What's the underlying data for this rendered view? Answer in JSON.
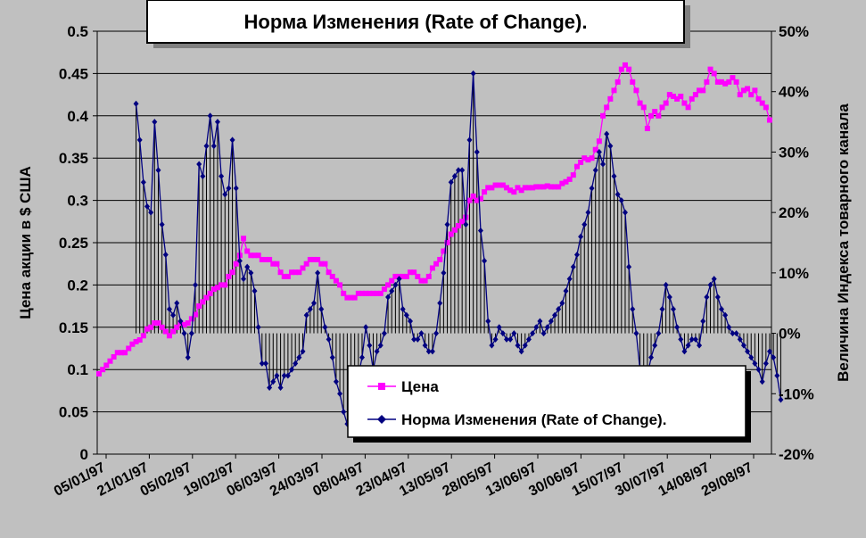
{
  "chart_data": {
    "type": "line",
    "title": "Норма Изменения (Rate of Change).",
    "ylabel": "Цена акции в $ США",
    "y2label": "Величина Индекса товарного канала",
    "ylim": [
      0,
      0.5
    ],
    "y2lim": [
      -20,
      50
    ],
    "yticks": [
      "0",
      "0.05",
      "0.1",
      "0.15",
      "0.2",
      "0.25",
      "0.3",
      "0.35",
      "0.4",
      "0.45",
      "0.5"
    ],
    "y2ticks": [
      "-20%",
      "-10%",
      "0%",
      "10%",
      "20%",
      "30%",
      "40%",
      "50%"
    ],
    "xticks": [
      "05/01/97",
      "21/01/97",
      "05/02/97",
      "19/02/97",
      "06/03/97",
      "24/03/97",
      "08/04/97",
      "23/04/97",
      "13/05/97",
      "28/05/97",
      "13/06/97",
      "30/06/97",
      "15/07/97",
      "30/07/97",
      "14/08/97",
      "29/08/97"
    ],
    "grid": true,
    "legend_position": "bottom-center",
    "colors": {
      "price": "#ff00ff",
      "roc": "#000080",
      "plot_bg": "#c0c0c0",
      "grid": "#000000"
    },
    "series": [
      {
        "name": "Цена",
        "axis": "left",
        "marker": "square",
        "values": [
          0.095,
          0.1,
          0.105,
          0.11,
          0.115,
          0.12,
          0.12,
          0.12,
          0.125,
          0.13,
          0.133,
          0.135,
          0.14,
          0.148,
          0.15,
          0.155,
          0.155,
          0.15,
          0.145,
          0.14,
          0.145,
          0.15,
          0.155,
          0.153,
          0.155,
          0.16,
          0.165,
          0.175,
          0.18,
          0.185,
          0.19,
          0.195,
          0.197,
          0.2,
          0.2,
          0.21,
          0.215,
          0.225,
          0.235,
          0.255,
          0.24,
          0.235,
          0.235,
          0.235,
          0.23,
          0.23,
          0.23,
          0.225,
          0.225,
          0.215,
          0.21,
          0.21,
          0.215,
          0.215,
          0.215,
          0.22,
          0.225,
          0.23,
          0.23,
          0.23,
          0.225,
          0.225,
          0.215,
          0.21,
          0.205,
          0.2,
          0.19,
          0.185,
          0.185,
          0.185,
          0.19,
          0.19,
          0.19,
          0.19,
          0.19,
          0.19,
          0.19,
          0.195,
          0.2,
          0.205,
          0.21,
          0.21,
          0.21,
          0.21,
          0.215,
          0.215,
          0.21,
          0.205,
          0.205,
          0.21,
          0.22,
          0.225,
          0.23,
          0.24,
          0.25,
          0.26,
          0.265,
          0.27,
          0.275,
          0.28,
          0.3,
          0.305,
          0.3,
          0.302,
          0.31,
          0.315,
          0.315,
          0.318,
          0.318,
          0.318,
          0.315,
          0.312,
          0.31,
          0.315,
          0.312,
          0.315,
          0.315,
          0.315,
          0.316,
          0.316,
          0.316,
          0.317,
          0.316,
          0.316,
          0.316,
          0.32,
          0.322,
          0.325,
          0.33,
          0.34,
          0.345,
          0.35,
          0.348,
          0.35,
          0.36,
          0.37,
          0.4,
          0.41,
          0.42,
          0.43,
          0.44,
          0.455,
          0.46,
          0.455,
          0.44,
          0.43,
          0.415,
          0.41,
          0.385,
          0.4,
          0.405,
          0.4,
          0.41,
          0.415,
          0.425,
          0.423,
          0.42,
          0.423,
          0.415,
          0.41,
          0.42,
          0.425,
          0.43,
          0.43,
          0.44,
          0.455,
          0.45,
          0.44,
          0.44,
          0.438,
          0.44,
          0.445,
          0.44,
          0.425,
          0.43,
          0.432,
          0.425,
          0.43,
          0.42,
          0.415,
          0.41,
          0.395
        ]
      },
      {
        "name": "Норма Изменения (Rate of Change).",
        "axis": "right",
        "marker": "diamond",
        "values": [
          null,
          null,
          null,
          null,
          null,
          null,
          null,
          null,
          null,
          null,
          38,
          32,
          25,
          21,
          20,
          35,
          27,
          18,
          13,
          4,
          3,
          5,
          2,
          0,
          -4,
          0,
          8,
          28,
          26,
          31,
          36,
          31,
          35,
          26,
          23,
          24,
          32,
          24,
          12,
          9,
          11,
          10,
          7,
          1,
          -5,
          -5,
          -9,
          -8,
          -7,
          -9,
          -7,
          -7,
          -6,
          -5,
          -4,
          -3,
          3,
          4,
          5,
          10,
          4,
          1,
          -1,
          -4,
          -8,
          -10,
          -13,
          -15,
          -12,
          -9,
          -7,
          -4,
          1,
          -2,
          -6,
          -3,
          -2,
          0,
          6,
          7,
          8,
          9,
          4,
          3,
          2,
          -1,
          -1,
          0,
          -2,
          -3,
          -3,
          0,
          5,
          10,
          18,
          25,
          26,
          27,
          27,
          18,
          32,
          43,
          30,
          17,
          12,
          2,
          -2,
          -1,
          1,
          0,
          -1,
          -1,
          0,
          -2,
          -3,
          -2,
          -1,
          0,
          1,
          2,
          0,
          1,
          2,
          3,
          4,
          5,
          7,
          9,
          11,
          13,
          16,
          18,
          20,
          24,
          27,
          30,
          28,
          33,
          31,
          26,
          23,
          22,
          20,
          11,
          4,
          0,
          -6,
          -6,
          -7,
          -4,
          -2,
          0,
          4,
          8,
          6,
          4,
          1,
          -1,
          -3,
          -2,
          -1,
          -1,
          -2,
          2,
          6,
          8,
          9,
          6,
          4,
          3,
          1,
          0,
          0,
          -1,
          -2,
          -3,
          -4,
          -5,
          -6,
          -8,
          -5,
          -3,
          -4,
          -7,
          -11
        ]
      }
    ]
  }
}
